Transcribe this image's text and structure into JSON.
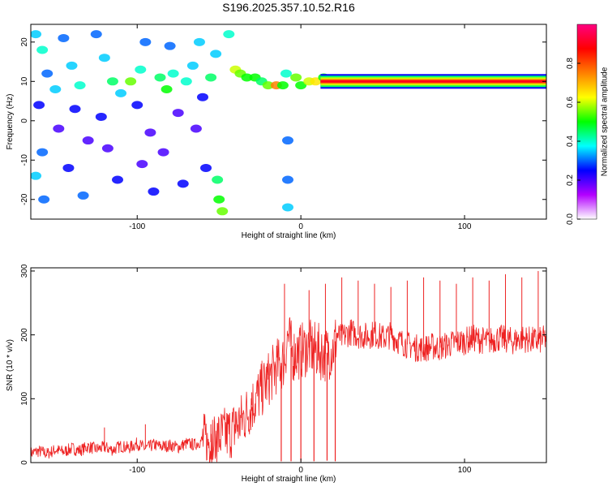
{
  "figure_title": "S196.2025.357.10.52.R16",
  "chart_data": [
    {
      "type": "heatmap",
      "xlabel": "Height of straight line (km)",
      "ylabel": "Frequency (Hz)",
      "xlim": [
        -165,
        150
      ],
      "ylim": [
        -25,
        24.5
      ],
      "x_ticks": [
        -100,
        0,
        100
      ],
      "x_tick_labels": [
        "-100",
        "0",
        "100"
      ],
      "y_ticks": [
        -20,
        -10,
        0,
        10,
        20
      ],
      "y_tick_labels": [
        "-20",
        "-10",
        "0",
        "10",
        "20"
      ],
      "grid": false,
      "colorbar": {
        "label": "Normalized spectral amplitude",
        "range": [
          0,
          1
        ],
        "ticks": [
          0.0,
          0.2,
          0.4,
          0.6,
          0.8
        ],
        "tick_labels": [
          "0.0",
          "0.2",
          "0.4",
          "0.6",
          "0.8"
        ],
        "colors": [
          "#ffffff",
          "#b300ff",
          "#0000ff",
          "#00ffff",
          "#00ff00",
          "#ffff00",
          "#ff8000",
          "#ff0000",
          "#ff0080"
        ]
      },
      "band": {
        "frequency": 10,
        "x_start": 12,
        "x_end": 150,
        "peak": 0.9
      },
      "patches": [
        {
          "x": -162,
          "y": 22,
          "v": 0.35
        },
        {
          "x": -158,
          "y": 18,
          "v": 0.4
        },
        {
          "x": -155,
          "y": 12,
          "v": 0.3
        },
        {
          "x": -150,
          "y": 8,
          "v": 0.35
        },
        {
          "x": -160,
          "y": 4,
          "v": 0.25
        },
        {
          "x": -148,
          "y": -2,
          "v": 0.2
        },
        {
          "x": -158,
          "y": -8,
          "v": 0.3
        },
        {
          "x": -162,
          "y": -14,
          "v": 0.35
        },
        {
          "x": -157,
          "y": -20,
          "v": 0.3
        },
        {
          "x": -145,
          "y": 21,
          "v": 0.3
        },
        {
          "x": -140,
          "y": 14,
          "v": 0.35
        },
        {
          "x": -135,
          "y": 9,
          "v": 0.4
        },
        {
          "x": -138,
          "y": 3,
          "v": 0.25
        },
        {
          "x": -130,
          "y": -5,
          "v": 0.2
        },
        {
          "x": -142,
          "y": -12,
          "v": 0.25
        },
        {
          "x": -133,
          "y": -19,
          "v": 0.3
        },
        {
          "x": -125,
          "y": 22,
          "v": 0.3
        },
        {
          "x": -120,
          "y": 16,
          "v": 0.35
        },
        {
          "x": -115,
          "y": 10,
          "v": 0.45
        },
        {
          "x": -110,
          "y": 7,
          "v": 0.35
        },
        {
          "x": -122,
          "y": 1,
          "v": 0.25
        },
        {
          "x": -118,
          "y": -7,
          "v": 0.2
        },
        {
          "x": -112,
          "y": -15,
          "v": 0.25
        },
        {
          "x": -104,
          "y": 10,
          "v": 0.55
        },
        {
          "x": -98,
          "y": 13,
          "v": 0.4
        },
        {
          "x": -95,
          "y": 20,
          "v": 0.3
        },
        {
          "x": -100,
          "y": 4,
          "v": 0.25
        },
        {
          "x": -92,
          "y": -3,
          "v": 0.2
        },
        {
          "x": -97,
          "y": -11,
          "v": 0.2
        },
        {
          "x": -90,
          "y": -18,
          "v": 0.25
        },
        {
          "x": -86,
          "y": 11,
          "v": 0.45
        },
        {
          "x": -82,
          "y": 8,
          "v": 0.5
        },
        {
          "x": -78,
          "y": 12,
          "v": 0.4
        },
        {
          "x": -80,
          "y": 19,
          "v": 0.3
        },
        {
          "x": -75,
          "y": 2,
          "v": 0.2
        },
        {
          "x": -84,
          "y": -8,
          "v": 0.2
        },
        {
          "x": -72,
          "y": -16,
          "v": 0.25
        },
        {
          "x": -70,
          "y": 10,
          "v": 0.4
        },
        {
          "x": -66,
          "y": 14,
          "v": 0.35
        },
        {
          "x": -62,
          "y": 20,
          "v": 0.35
        },
        {
          "x": -60,
          "y": 6,
          "v": 0.25
        },
        {
          "x": -64,
          "y": -2,
          "v": 0.2
        },
        {
          "x": -58,
          "y": -12,
          "v": 0.25
        },
        {
          "x": -55,
          "y": 11,
          "v": 0.45
        },
        {
          "x": -52,
          "y": 17,
          "v": 0.35
        },
        {
          "x": -50,
          "y": -20,
          "v": 0.5
        },
        {
          "x": -48,
          "y": -23,
          "v": 0.55
        },
        {
          "x": -51,
          "y": -15,
          "v": 0.45
        },
        {
          "x": -44,
          "y": 22,
          "v": 0.4
        },
        {
          "x": -40,
          "y": 13,
          "v": 0.6
        },
        {
          "x": -37,
          "y": 12,
          "v": 0.55
        },
        {
          "x": -33,
          "y": 11,
          "v": 0.5
        },
        {
          "x": -28,
          "y": 11,
          "v": 0.5
        },
        {
          "x": -24,
          "y": 10,
          "v": 0.45
        },
        {
          "x": -20,
          "y": 9,
          "v": 0.55
        },
        {
          "x": -15,
          "y": 9,
          "v": 0.75
        },
        {
          "x": -11,
          "y": 9,
          "v": 0.5
        },
        {
          "x": -9,
          "y": 12,
          "v": 0.4
        },
        {
          "x": -8,
          "y": -5,
          "v": 0.3
        },
        {
          "x": -8,
          "y": -15,
          "v": 0.3
        },
        {
          "x": -8,
          "y": -22,
          "v": 0.35
        },
        {
          "x": -3,
          "y": 11,
          "v": 0.55
        },
        {
          "x": 0,
          "y": 9,
          "v": 0.5
        },
        {
          "x": 5,
          "y": 10,
          "v": 0.6
        },
        {
          "x": 9,
          "y": 10,
          "v": 0.65
        },
        {
          "x": 14,
          "y": 11,
          "v": 0.5
        }
      ]
    },
    {
      "type": "line",
      "xlabel": "Height of straight line (km)",
      "ylabel": "SNR (10 * v/v)",
      "xlim": [
        -165,
        150
      ],
      "ylim": [
        0,
        305
      ],
      "x_ticks": [
        -100,
        0,
        100
      ],
      "x_tick_labels": [
        "-100",
        "0",
        "100"
      ],
      "y_ticks": [
        0,
        100,
        200,
        300
      ],
      "y_tick_labels": [
        "0",
        "100",
        "200",
        "300"
      ],
      "grid": false,
      "series": [
        {
          "color": "#ee2222",
          "x": [
            -165,
            -160,
            -155,
            -150,
            -145,
            -140,
            -135,
            -130,
            -125,
            -120,
            -115,
            -110,
            -105,
            -100,
            -95,
            -90,
            -85,
            -80,
            -75,
            -70,
            -65,
            -60,
            -55,
            -50,
            -45,
            -40,
            -35,
            -30,
            -25,
            -20,
            -15,
            -10,
            -8,
            -5,
            0,
            5,
            10,
            15,
            20,
            22,
            25,
            30,
            35,
            40,
            45,
            50,
            55,
            60,
            65,
            70,
            75,
            80,
            85,
            90,
            95,
            100,
            105,
            110,
            115,
            120,
            125,
            130,
            135,
            140,
            145,
            150
          ],
          "values": [
            15,
            18,
            14,
            20,
            17,
            22,
            19,
            25,
            21,
            24,
            20,
            26,
            23,
            30,
            22,
            28,
            25,
            27,
            24,
            30,
            28,
            35,
            32,
            40,
            45,
            55,
            70,
            90,
            110,
            130,
            150,
            160,
            200,
            170,
            175,
            180,
            175,
            170,
            180,
            200,
            195,
            205,
            200,
            198,
            202,
            195,
            200,
            190,
            185,
            180,
            178,
            182,
            180,
            185,
            188,
            190,
            195,
            192,
            190,
            195,
            193,
            190,
            195,
            192,
            190,
            195
          ],
          "spikes": [
            {
              "x": -120,
              "value": 55
            },
            {
              "x": -95,
              "value": 60
            },
            {
              "x": -55,
              "value": 60
            },
            {
              "x": -40,
              "value": 80
            },
            {
              "x": -30,
              "value": 110
            },
            {
              "x": -20,
              "value": 160
            },
            {
              "x": -10,
              "value": 280
            },
            {
              "x": 5,
              "value": 270
            },
            {
              "x": 15,
              "value": 280
            },
            {
              "x": 25,
              "value": 290
            },
            {
              "x": 35,
              "value": 285
            },
            {
              "x": 45,
              "value": 280
            },
            {
              "x": 55,
              "value": 275
            },
            {
              "x": 65,
              "value": 285
            },
            {
              "x": 75,
              "value": 290
            },
            {
              "x": 85,
              "value": 285
            },
            {
              "x": 95,
              "value": 280
            },
            {
              "x": 105,
              "value": 290
            },
            {
              "x": 115,
              "value": 285
            },
            {
              "x": 125,
              "value": 295
            },
            {
              "x": 135,
              "value": 290
            },
            {
              "x": 145,
              "value": 300
            }
          ],
          "dropouts": [
            {
              "x": -12,
              "value": 2
            },
            {
              "x": -6,
              "value": 2
            },
            {
              "x": 0,
              "value": 3
            },
            {
              "x": 8,
              "value": 2
            },
            {
              "x": 16,
              "value": 3
            },
            {
              "x": 21,
              "value": 2
            }
          ]
        }
      ]
    }
  ]
}
